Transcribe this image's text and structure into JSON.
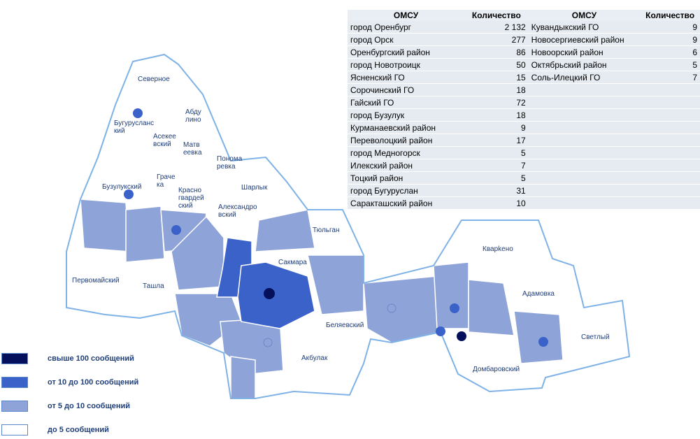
{
  "colors": {
    "level1": "#04105c",
    "level2": "#3b62c9",
    "level3": "#8ea3d8",
    "level4": "#ffffff",
    "border": "#7fb2e6",
    "label": "#1f3e7a"
  },
  "map": {
    "labels": {
      "severnoe": "Северное",
      "abdulino": "Абду\nлино",
      "buguruslansky": "Бугурусланс\nкий",
      "asekeevsky": "Асекее\nвский",
      "matveevka": "Матв\nеевка",
      "ponomarevka": "Понома\nревка",
      "grachevka": "Граче\nка",
      "buzuluksky": "Бузулукский",
      "krasnogvardeysky": "Красно\nгвардей\nский",
      "sharlyk": "Шарлык",
      "aleksandrovsky": "Александро\nвский",
      "tyulgan": "Тюльган",
      "kvarkeno": "Кварkено",
      "saktmara": "Сакмара",
      "pervomaysky": "Первомайский",
      "tashla": "Ташла",
      "adamovka": "Адамовка",
      "belyaevsky": "Беляевский",
      "svetly": "Светлый",
      "akbulak": "Акбулак",
      "dombarovsky": "Домбаровский"
    }
  },
  "table": {
    "headers": [
      "ОМСУ",
      "Количество",
      "ОМСУ",
      "Количество"
    ],
    "rows": [
      [
        "город Оренбург",
        "2 132",
        "Кувандыкский ГО",
        "9"
      ],
      [
        "город Орск",
        "277",
        "Новосергиевский район",
        "9"
      ],
      [
        "Оренбургский район",
        "86",
        "Новоорский район",
        "6"
      ],
      [
        "город Новотроицк",
        "50",
        "Октябрьский район",
        "5"
      ],
      [
        "Ясненский ГО",
        "15",
        "Соль-Илецкий ГО",
        "7"
      ],
      [
        "Сорочинский ГО",
        "18",
        "",
        ""
      ],
      [
        "Гайский ГО",
        "72",
        "",
        ""
      ],
      [
        "город Бузулук",
        "18",
        "",
        ""
      ],
      [
        "Курманаевский район",
        "9",
        "",
        ""
      ],
      [
        "Переволоцкий район",
        "17",
        "",
        ""
      ],
      [
        "город Медногорск",
        "5",
        "",
        ""
      ],
      [
        "Илекский район",
        "7",
        "",
        ""
      ],
      [
        "Тоцкий район",
        "5",
        "",
        ""
      ],
      [
        "город  Бугуруслан",
        "31",
        "",
        ""
      ],
      [
        "Саракташский  район",
        "10",
        "",
        ""
      ]
    ]
  },
  "legend": [
    {
      "label": "свыше  100 сообщений",
      "color": "#04105c"
    },
    {
      "label": "от 10 до 100 сообщений",
      "color": "#3b62c9"
    },
    {
      "label": "от 5 до 10 сообщений",
      "color": "#8ea3d8"
    },
    {
      "label": "до 5 сообщений",
      "color": "#ffffff"
    }
  ]
}
